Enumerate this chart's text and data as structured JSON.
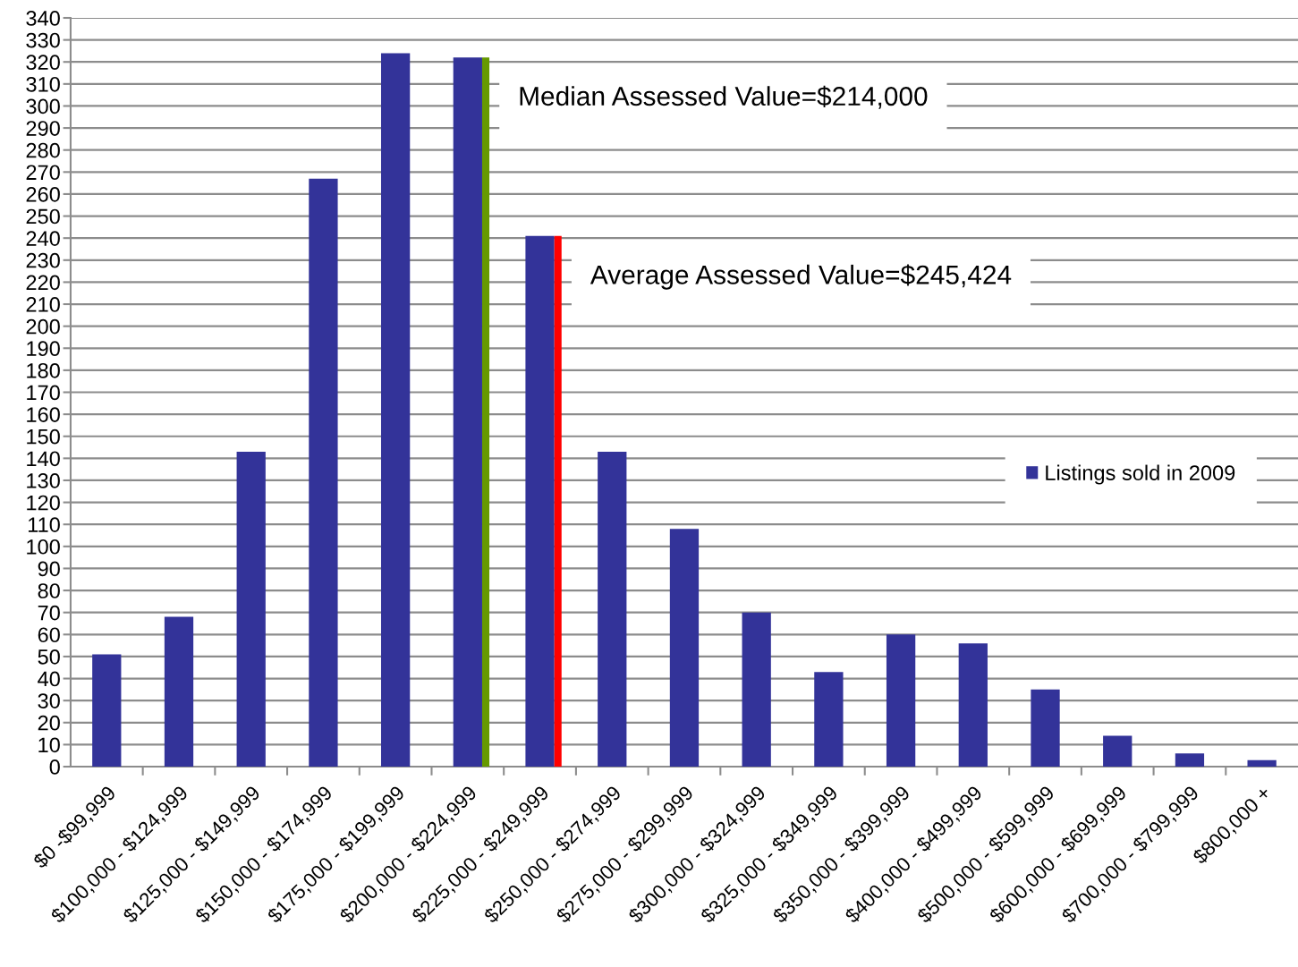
{
  "chart_data": {
    "type": "bar",
    "categories": [
      "$0 -$99,999",
      "$100,000 - $124,999",
      "$125,000 - $149,999",
      "$150,000 - $174,999",
      "$175,000 - $199,999",
      "$200,000 - $224,999",
      "$225,000 - $249,999",
      "$250,000 - $274,999",
      "$275,000 - $299,999",
      "$300,000 - $324,999",
      "$325,000 - $349,999",
      "$350,000 - $399,999",
      "$400,000 - $499,999",
      "$500,000 - $599,999",
      "$600,000 - $699,999",
      "$700,000 - $799,999",
      "$800,000 +"
    ],
    "series": [
      {
        "name": "Listings sold in 2009",
        "color": "#333399",
        "values": [
          51,
          68,
          143,
          267,
          324,
          322,
          241,
          143,
          108,
          70,
          43,
          60,
          56,
          35,
          14,
          6,
          3
        ]
      }
    ],
    "ylim": [
      0,
      340
    ],
    "yticks": [
      0,
      10,
      20,
      30,
      40,
      50,
      60,
      70,
      80,
      90,
      100,
      110,
      120,
      130,
      140,
      150,
      160,
      170,
      180,
      190,
      200,
      210,
      220,
      230,
      240,
      250,
      260,
      270,
      280,
      290,
      300,
      310,
      320,
      330,
      340
    ],
    "grid": "y",
    "legend": "right",
    "ref_lines": [
      {
        "axis": "x",
        "value": "$200,000 - $224,999",
        "label": "Median Assessed Value=$214,000",
        "color": "#669900"
      },
      {
        "axis": "x",
        "value": "$225,000 - $249,999",
        "label": "Average Assessed Value=$245,424",
        "color": "#ff0000"
      }
    ]
  }
}
